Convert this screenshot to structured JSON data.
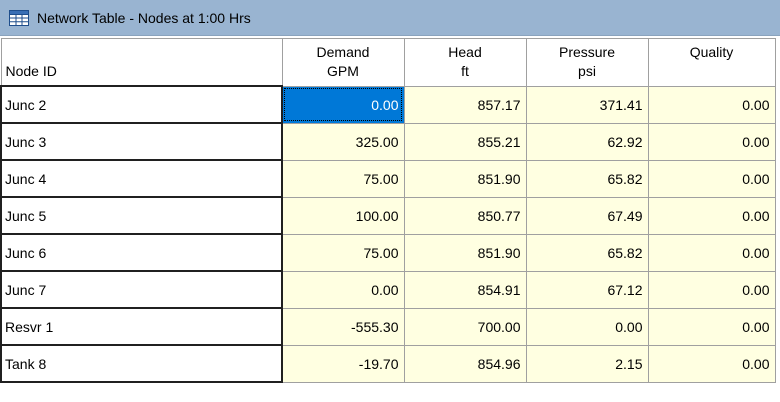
{
  "window": {
    "title": "Network Table - Nodes at 1:00 Hrs",
    "icon": "table-grid-icon"
  },
  "table": {
    "headers": [
      {
        "line1": "Node ID",
        "line2": ""
      },
      {
        "line1": "Demand",
        "line2": "GPM"
      },
      {
        "line1": "Head",
        "line2": "ft"
      },
      {
        "line1": "Pressure",
        "line2": "psi"
      },
      {
        "line1": "Quality",
        "line2": ""
      }
    ],
    "rows": [
      {
        "id": "Junc 2",
        "demand": "0.00",
        "head": "857.17",
        "pressure": "371.41",
        "quality": "0.00"
      },
      {
        "id": "Junc 3",
        "demand": "325.00",
        "head": "855.21",
        "pressure": "62.92",
        "quality": "0.00"
      },
      {
        "id": "Junc 4",
        "demand": "75.00",
        "head": "851.90",
        "pressure": "65.82",
        "quality": "0.00"
      },
      {
        "id": "Junc 5",
        "demand": "100.00",
        "head": "850.77",
        "pressure": "67.49",
        "quality": "0.00"
      },
      {
        "id": "Junc 6",
        "demand": "75.00",
        "head": "851.90",
        "pressure": "65.82",
        "quality": "0.00"
      },
      {
        "id": "Junc 7",
        "demand": "0.00",
        "head": "854.91",
        "pressure": "67.12",
        "quality": "0.00"
      },
      {
        "id": "Resvr 1",
        "demand": "-555.30",
        "head": "700.00",
        "pressure": "0.00",
        "quality": "0.00"
      },
      {
        "id": "Tank 8",
        "demand": "-19.70",
        "head": "854.96",
        "pressure": "2.15",
        "quality": "0.00"
      }
    ]
  },
  "colors": {
    "titlebar": "#99b4d1",
    "cell_background": "#ffffe1",
    "selected_cell": "#0078d7"
  }
}
